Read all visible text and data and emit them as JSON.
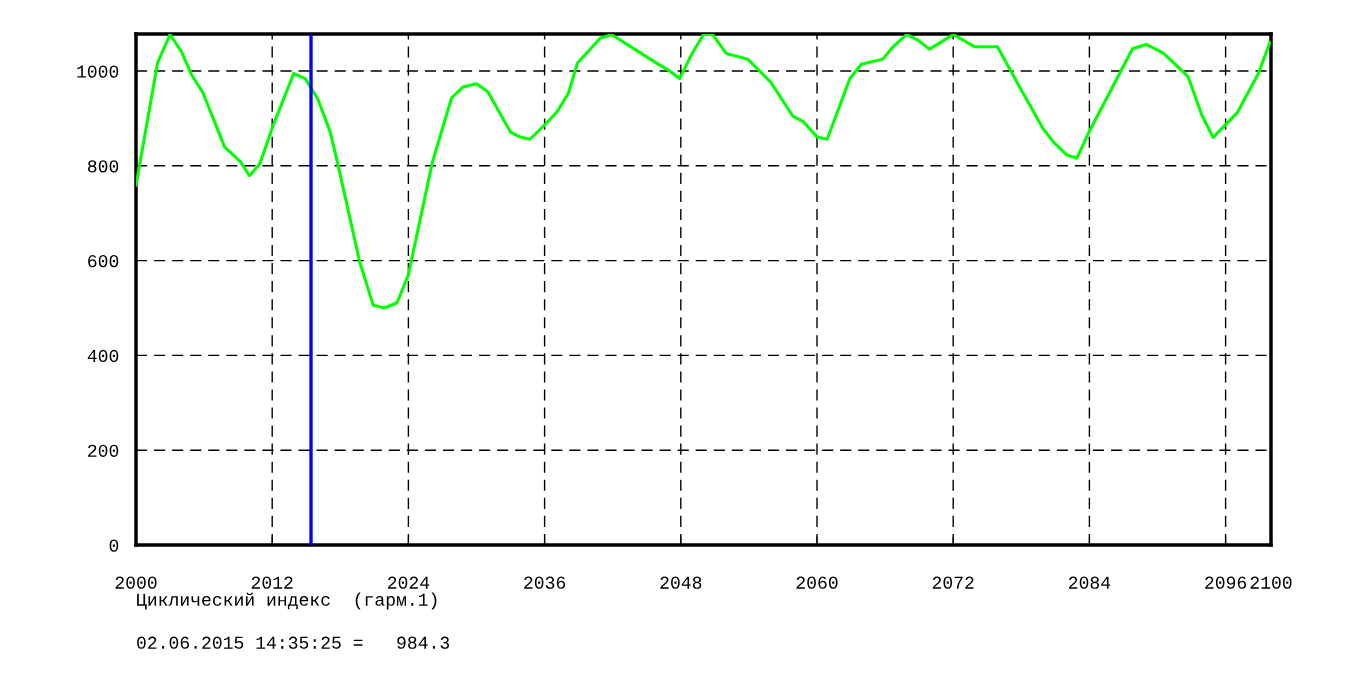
{
  "chart_data": {
    "type": "line",
    "xlabel": "Циклический индекс  (гарм.1)",
    "annotations": [
      "02.06.2015 14:35:25 =   984.3"
    ],
    "xlim": [
      2000,
      2100
    ],
    "xticks": [
      2000,
      2012,
      2024,
      2036,
      2048,
      2060,
      2072,
      2084,
      2096,
      2100
    ],
    "ylim": [
      0,
      1078
    ],
    "yticks": [
      0,
      200,
      400,
      600,
      800,
      1000
    ],
    "grid": true,
    "line_style": "solid",
    "marker": "none",
    "ref_lines": [
      {
        "axis": "x",
        "value": 2015.42,
        "color": "#0000ff"
      }
    ],
    "series": [
      {
        "color": "#00ff00",
        "x": [
          2000.0,
          2001.9,
          2003.0,
          2004.0,
          2004.9,
          2005.9,
          2007.8,
          2009.2,
          2010.0,
          2010.9,
          2012.1,
          2013.9,
          2014.9,
          2016.0,
          2017.1,
          2017.8,
          2019.7,
          2020.9,
          2021.9,
          2023.0,
          2024.0,
          2026.1,
          2027.8,
          2028.8,
          2030.0,
          2031.0,
          2033.0,
          2033.8,
          2034.7,
          2036.0,
          2037.1,
          2038.1,
          2038.9,
          2040.9,
          2041.9,
          2045.9,
          2046.9,
          2047.9,
          2049.0,
          2050.0,
          2050.8,
          2052.0,
          2053.9,
          2055.9,
          2057.9,
          2058.8,
          2060.0,
          2060.9,
          2062.9,
          2063.9,
          2065.8,
          2066.7,
          2067.9,
          2068.9,
          2069.9,
          2071.0,
          2072.0,
          2073.9,
          2075.9,
          2078.0,
          2079.9,
          2080.8,
          2082.0,
          2082.9,
          2083.9,
          2085.6,
          2087.8,
          2089.0,
          2090.5,
          2092.7,
          2093.9,
          2094.9,
          2097.0,
          2098.9,
          2099.9
        ],
        "values": [
          759,
          1017,
          1077,
          1041,
          992,
          954,
          840,
          809,
          779,
          804,
          886,
          995,
          984,
          942,
          872,
          802,
          598,
          506,
          500,
          511,
          570,
          806,
          943,
          966,
          973,
          956,
          871,
          861,
          856,
          886,
          914,
          953,
          1017,
          1069,
          1077,
          1016,
          1002,
          984,
          1037,
          1077,
          1077,
          1037,
          1025,
          977,
          904,
          893,
          861,
          856,
          984,
          1014,
          1025,
          1051,
          1077,
          1065,
          1046,
          1062,
          1077,
          1051,
          1051,
          960,
          879,
          851,
          823,
          816,
          868,
          946,
          1047,
          1056,
          1038,
          988,
          907,
          860,
          911,
          995,
          1060
        ]
      }
    ]
  }
}
